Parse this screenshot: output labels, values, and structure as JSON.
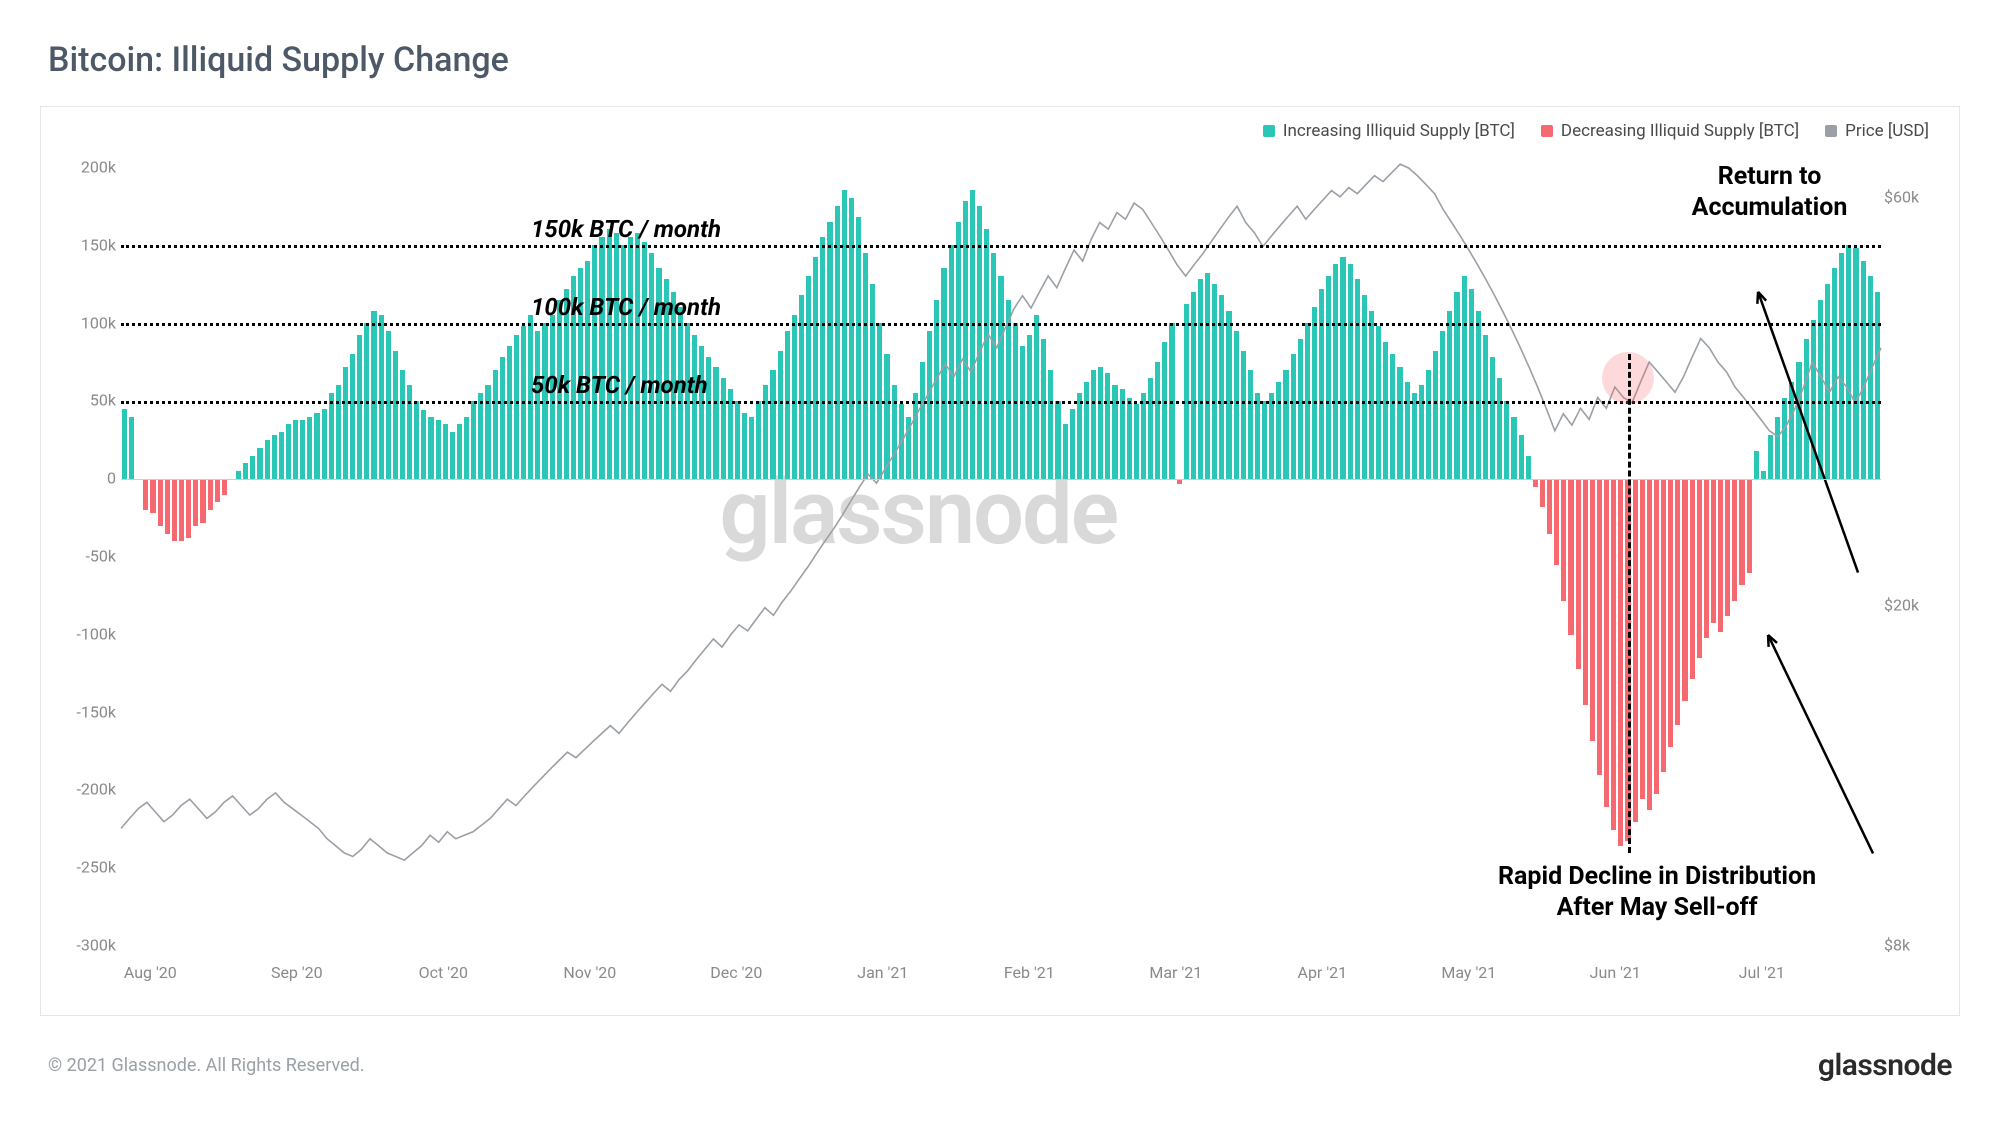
{
  "title": "Bitcoin: Illiquid Supply Change",
  "copyright": "© 2021 Glassnode. All Rights Reserved.",
  "brand": "glassnode",
  "watermark": "glassnode",
  "legend": {
    "increasing": {
      "label": "Increasing Illiquid Supply [BTC]",
      "color": "#2ac7b7"
    },
    "decreasing": {
      "label": "Decreasing Illiquid Supply [BTC]",
      "color": "#f76971"
    },
    "price": {
      "label": "Price [USD]",
      "color": "#9aa0a6"
    }
  },
  "chart": {
    "type": "bar+line",
    "background_color": "#ffffff",
    "border_color": "#e6e6e6",
    "axis_text_color": "#8a8a8a",
    "font_family": "sans-serif",
    "x_labels": [
      "Aug '20",
      "Sep '20",
      "Oct '20",
      "Nov '20",
      "Dec '20",
      "Jan '21",
      "Feb '21",
      "Mar '21",
      "Apr '21",
      "May '21",
      "Jun '21",
      "Jul '21"
    ],
    "y_left": {
      "min": -300000,
      "max": 200000,
      "ticks": [
        -300000,
        -250000,
        -200000,
        -150000,
        -100000,
        -50000,
        0,
        50000,
        100000,
        150000,
        200000
      ],
      "tick_labels": [
        "-300k",
        "-250k",
        "-200k",
        "-150k",
        "-100k",
        "-50k",
        "0",
        "50k",
        "100k",
        "150k",
        "200k"
      ]
    },
    "y_right": {
      "scale": "log",
      "tick_values": [
        8000,
        20000,
        60000
      ],
      "tick_labels": [
        "$8k",
        "$20k",
        "$60k"
      ]
    },
    "ref_lines": [
      {
        "value": 50000,
        "label": "50k BTC / month"
      },
      {
        "value": 100000,
        "label": "100k BTC / month"
      },
      {
        "value": 150000,
        "label": "150k BTC / month"
      }
    ],
    "bar_color_pos": "#2ac7b7",
    "bar_color_neg": "#f76971",
    "bar_width_ratio": 0.72,
    "bars": [
      45,
      40,
      0,
      -20,
      -22,
      -30,
      -35,
      -40,
      -40,
      -38,
      -30,
      -28,
      -20,
      -15,
      -10,
      0,
      5,
      10,
      15,
      20,
      25,
      28,
      30,
      35,
      38,
      38,
      40,
      42,
      45,
      55,
      60,
      72,
      80,
      92,
      100,
      108,
      105,
      95,
      82,
      70,
      60,
      50,
      44,
      40,
      38,
      35,
      30,
      35,
      40,
      50,
      55,
      60,
      70,
      78,
      85,
      92,
      98,
      105,
      95,
      100,
      105,
      115,
      122,
      130,
      135,
      140,
      150,
      155,
      160,
      158,
      150,
      155,
      158,
      152,
      145,
      135,
      128,
      120,
      110,
      100,
      92,
      85,
      78,
      72,
      65,
      58,
      50,
      42,
      40,
      50,
      60,
      70,
      82,
      95,
      105,
      118,
      130,
      142,
      155,
      165,
      175,
      185,
      180,
      168,
      145,
      125,
      100,
      80,
      60,
      48,
      40,
      55,
      75,
      95,
      115,
      135,
      150,
      165,
      178,
      185,
      175,
      160,
      145,
      130,
      115,
      100,
      85,
      92,
      105,
      90,
      70,
      50,
      35,
      45,
      55,
      62,
      70,
      72,
      68,
      60,
      58,
      52,
      48,
      55,
      65,
      75,
      88,
      100,
      -3,
      112,
      120,
      128,
      132,
      125,
      118,
      108,
      95,
      82,
      70,
      55,
      50,
      55,
      62,
      70,
      80,
      90,
      100,
      110,
      122,
      130,
      138,
      142,
      138,
      128,
      118,
      108,
      98,
      88,
      80,
      72,
      62,
      55,
      60,
      70,
      82,
      95,
      108,
      120,
      130,
      122,
      108,
      92,
      78,
      65,
      50,
      40,
      28,
      15,
      -5,
      -18,
      -35,
      -55,
      -78,
      -100,
      -122,
      -145,
      -168,
      -190,
      -210,
      -225,
      -235,
      -232,
      -220,
      -205,
      -212,
      -202,
      -188,
      -172,
      -158,
      -142,
      -128,
      -115,
      -102,
      -92,
      -98,
      -88,
      -78,
      -68,
      -60,
      18,
      5,
      28,
      40,
      52,
      62,
      75,
      90,
      102,
      115,
      125,
      135,
      145,
      150,
      148,
      140,
      130,
      120
    ],
    "price_line": {
      "color": "#9aa0a6",
      "width": 1.6,
      "values_usd": [
        11000,
        11300,
        11600,
        11800,
        11500,
        11200,
        11400,
        11700,
        11900,
        11600,
        11300,
        11500,
        11800,
        12000,
        11700,
        11400,
        11600,
        11900,
        12100,
        11800,
        11600,
        11400,
        11200,
        11000,
        10700,
        10500,
        10300,
        10200,
        10400,
        10700,
        10500,
        10300,
        10200,
        10100,
        10300,
        10500,
        10800,
        10600,
        10900,
        10700,
        10800,
        10900,
        11100,
        11300,
        11600,
        11900,
        11700,
        12000,
        12300,
        12600,
        12900,
        13200,
        13500,
        13300,
        13600,
        13900,
        14200,
        14500,
        14200,
        14600,
        15000,
        15400,
        15800,
        16200,
        15900,
        16400,
        16800,
        17300,
        17800,
        18300,
        17900,
        18500,
        19000,
        18700,
        19300,
        19900,
        19500,
        20200,
        20800,
        21500,
        22200,
        23000,
        23800,
        24600,
        25500,
        26500,
        27500,
        28500,
        27800,
        28900,
        30000,
        31200,
        32500,
        33900,
        35300,
        36800,
        38300,
        37000,
        38800,
        37500,
        39500,
        41500,
        40000,
        42200,
        44400,
        46000,
        44500,
        46500,
        48500,
        47000,
        49500,
        52000,
        50500,
        53500,
        56000,
        55000,
        57500,
        56500,
        59000,
        58000,
        56000,
        54000,
        52000,
        50000,
        48500,
        50000,
        51500,
        53200,
        55000,
        56800,
        58500,
        56000,
        54500,
        52500,
        54000,
        55500,
        57000,
        58500,
        56500,
        58000,
        59500,
        61000,
        60000,
        61500,
        60500,
        62000,
        63500,
        62500,
        64000,
        65500,
        64800,
        63500,
        62000,
        60500,
        58000,
        56000,
        54000,
        52000,
        50000,
        48000,
        46000,
        44000,
        42000,
        40000,
        38000,
        36000,
        34000,
        32000,
        33500,
        32500,
        34000,
        33000,
        35000,
        34000,
        36000,
        35000,
        34500,
        36500,
        38500,
        37500,
        36500,
        35500,
        37000,
        39000,
        41000,
        40000,
        38500,
        37500,
        36000,
        35000,
        34000,
        33000,
        32000,
        31500,
        32500,
        34000,
        36000,
        38500,
        37000,
        35500,
        37000,
        36000,
        34500,
        36000,
        38000,
        40000
      ]
    },
    "annotations": {
      "top_right": "Return to Accumulation",
      "bottom_right_1": "Rapid Decline in Distribution",
      "bottom_right_2": "After May Sell-off",
      "highlight_index": 211,
      "vline_index": 211
    }
  }
}
